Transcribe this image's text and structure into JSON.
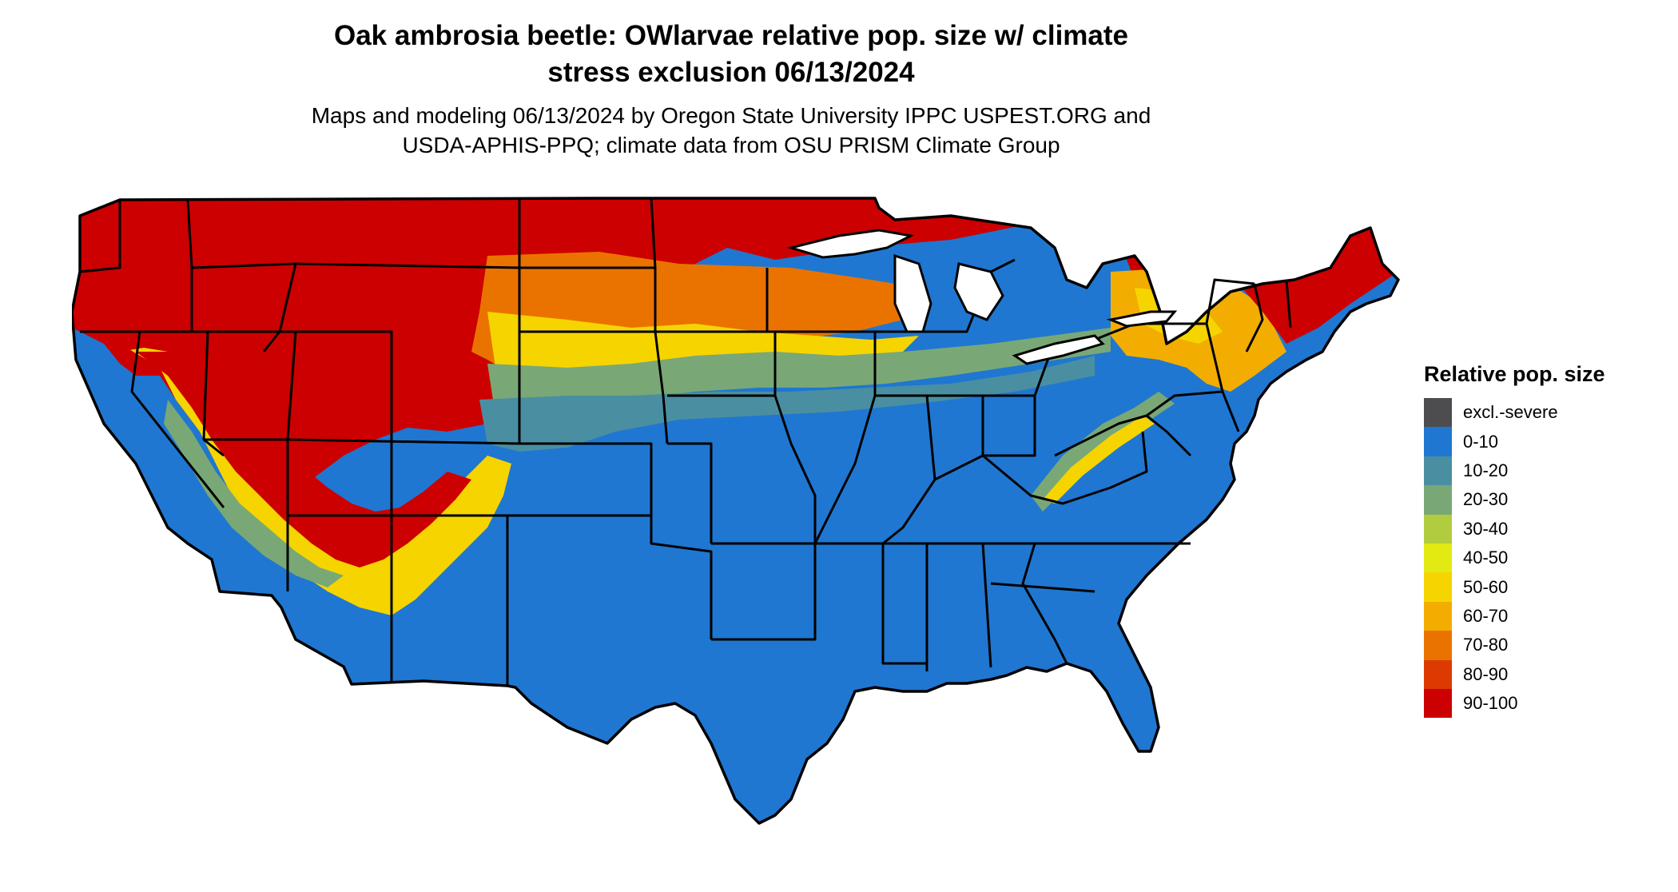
{
  "title": "Oak ambrosia beetle: OWlarvae relative pop. size w/ climate\nstress exclusion 06/13/2024",
  "subtitle": "Maps and modeling 06/13/2024 by Oregon State University IPPC USPEST.ORG and\nUSDA-APHIS-PPQ; climate data from OSU PRISM Climate Group",
  "legend": {
    "title": "Relative pop. size",
    "items": [
      {
        "label": "excl.-severe",
        "color": "#4d4d4f"
      },
      {
        "label": "0-10",
        "color": "#1f77d1"
      },
      {
        "label": "10-20",
        "color": "#4a8fa1"
      },
      {
        "label": "20-30",
        "color": "#79a876"
      },
      {
        "label": "30-40",
        "color": "#b2cc3f"
      },
      {
        "label": "40-50",
        "color": "#e2ea14"
      },
      {
        "label": "50-60",
        "color": "#f6d400"
      },
      {
        "label": "60-70",
        "color": "#f2ad00"
      },
      {
        "label": "70-80",
        "color": "#ea7300"
      },
      {
        "label": "80-90",
        "color": "#dc3a00"
      },
      {
        "label": "90-100",
        "color": "#cc0000"
      }
    ]
  },
  "map_colors": {
    "outline": "#000000",
    "low": "#1f77d1",
    "mid_low": "#4a8fa1",
    "mid": "#79a876",
    "mid_yellow": "#f6d400",
    "orange": "#ea7300",
    "high": "#cc0000"
  }
}
